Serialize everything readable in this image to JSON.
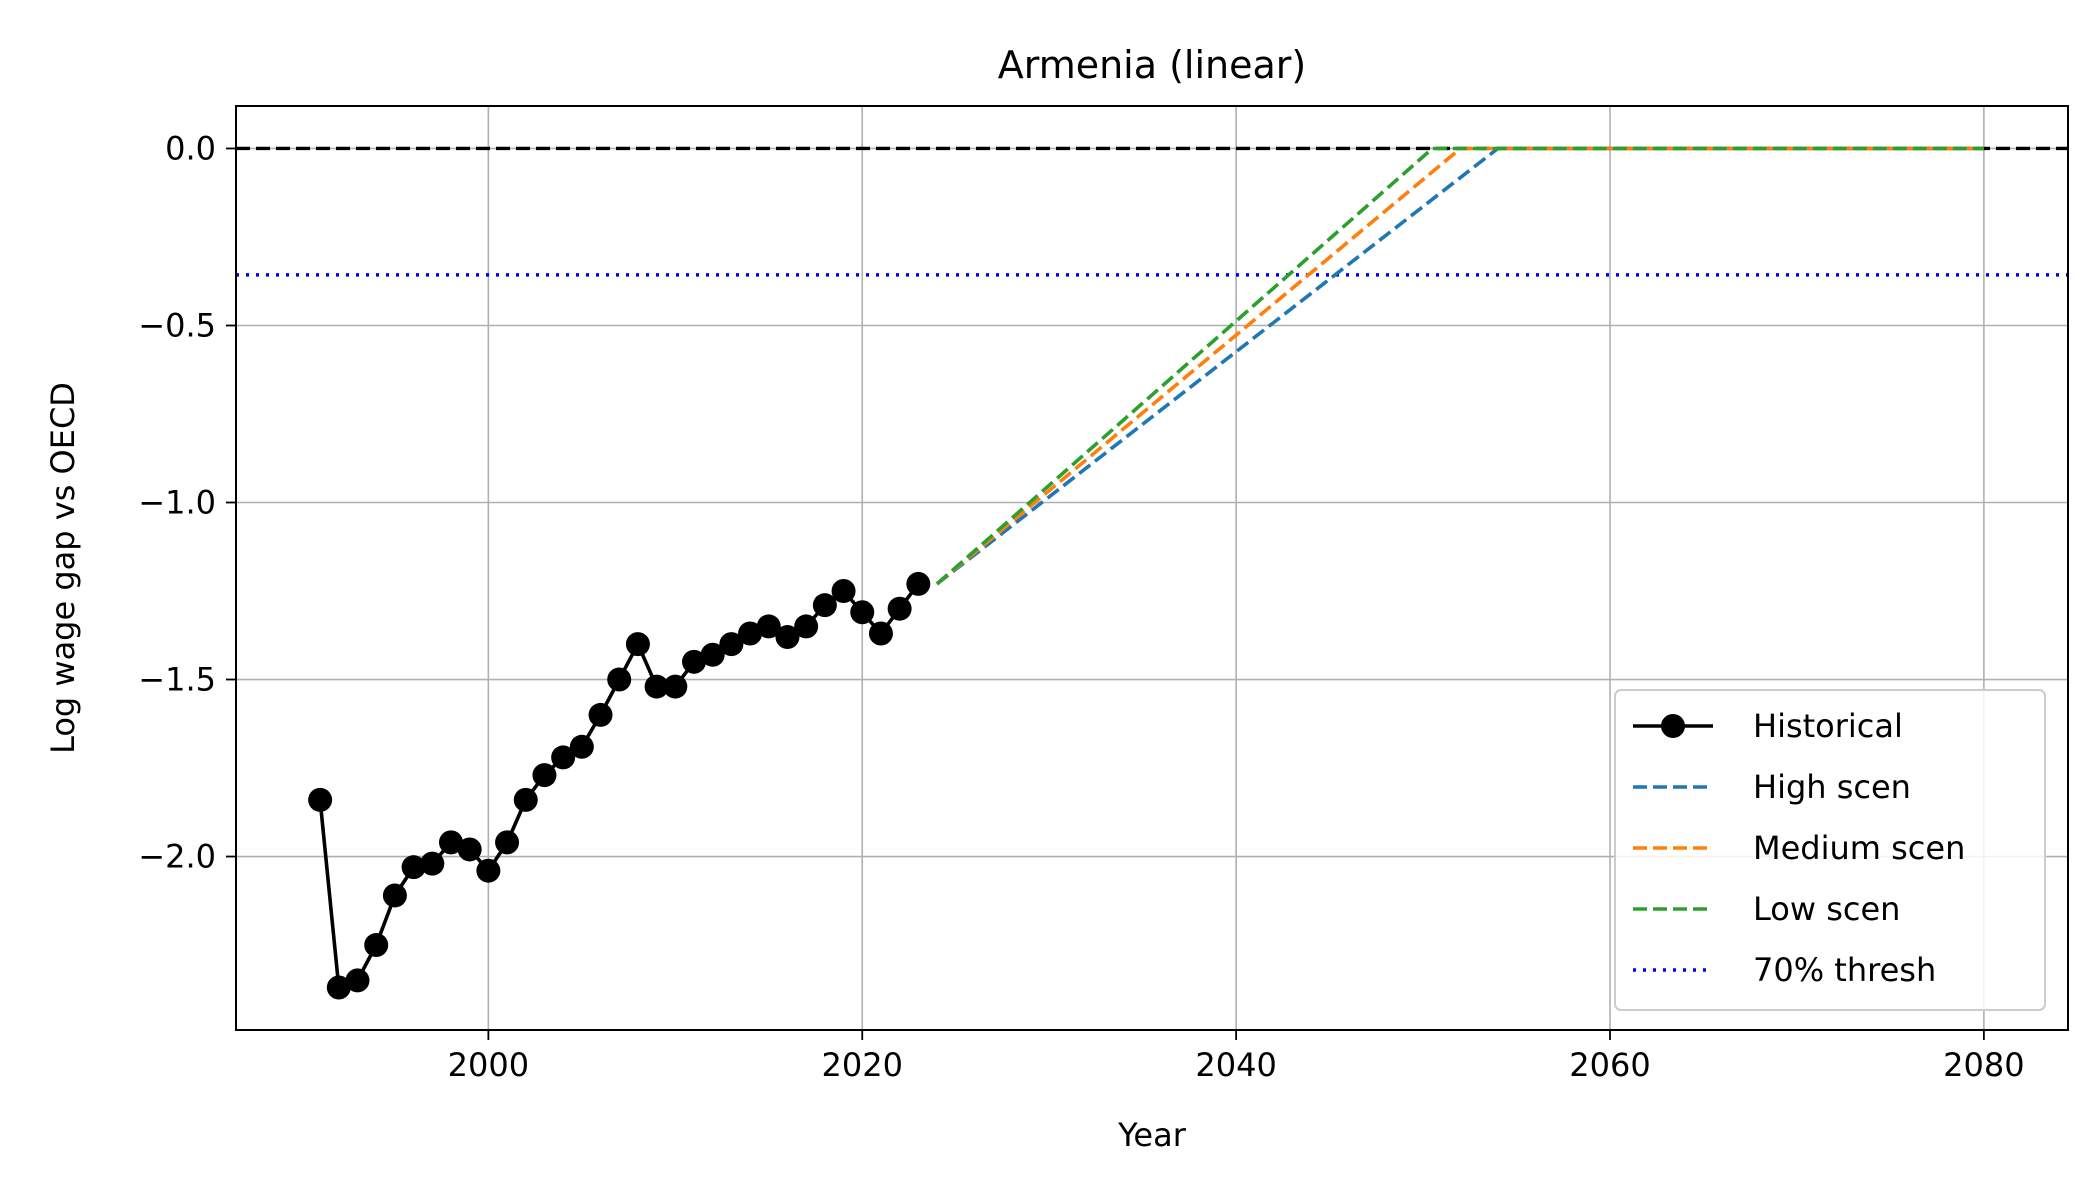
{
  "chart_data": {
    "type": "line",
    "title": "Armenia (linear)",
    "xlabel": "Year",
    "ylabel": "Log wage gap vs OECD",
    "xlim": [
      1986.5,
      2084.5
    ],
    "ylim": [
      -2.49,
      0.12
    ],
    "xticks": [
      2000,
      2020,
      2040,
      2060,
      2080
    ],
    "yticks": [
      0.0,
      -0.5,
      -1.0,
      -1.5,
      -2.0
    ],
    "ytick_labels": [
      "0.0",
      "−0.5",
      "−1.0",
      "−1.5",
      "−2.0"
    ],
    "grid": true,
    "legend_position": "lower-right",
    "reference_lines": [
      {
        "y": 0.0,
        "color": "#000000",
        "style": "dashed"
      },
      {
        "y": -0.357,
        "color": "#0000ff",
        "style": "dotted",
        "name": "70% thresh"
      }
    ],
    "series": [
      {
        "name": "Historical",
        "color": "#000000",
        "style": "solid",
        "marker": "circle",
        "x": [
          1991,
          1992,
          1993,
          1994,
          1995,
          1996,
          1997,
          1998,
          1999,
          2000,
          2001,
          2002,
          2003,
          2004,
          2005,
          2006,
          2007,
          2008,
          2009,
          2010,
          2011,
          2012,
          2013,
          2014,
          2015,
          2016,
          2017,
          2018,
          2019,
          2020,
          2021,
          2022,
          2023
        ],
        "y": [
          -1.84,
          -2.37,
          -2.35,
          -2.25,
          -2.11,
          -2.03,
          -2.02,
          -1.96,
          -1.98,
          -2.04,
          -1.96,
          -1.84,
          -1.77,
          -1.72,
          -1.69,
          -1.6,
          -1.5,
          -1.4,
          -1.52,
          -1.52,
          -1.45,
          -1.43,
          -1.4,
          -1.37,
          -1.35,
          -1.38,
          -1.35,
          -1.29,
          -1.25,
          -1.31,
          -1.37,
          -1.3,
          -1.23
        ]
      },
      {
        "name": "High scen",
        "color": "#1f77b4",
        "style": "dashed",
        "x": [
          2024,
          2054,
          2080
        ],
        "y": [
          -1.23,
          0.0,
          0.0
        ]
      },
      {
        "name": "Medium scen",
        "color": "#ff7f0e",
        "style": "dashed",
        "x": [
          2024,
          2052,
          2080
        ],
        "y": [
          -1.23,
          0.0,
          0.0
        ]
      },
      {
        "name": "Low scen",
        "color": "#2ca02c",
        "style": "dashed",
        "x": [
          2024,
          2050.5,
          2080
        ],
        "y": [
          -1.23,
          0.0,
          0.0
        ]
      }
    ],
    "legend": [
      {
        "name": "Historical",
        "color": "#000000",
        "style": "solid",
        "marker": "circle"
      },
      {
        "name": "High scen",
        "color": "#1f77b4",
        "style": "dashed"
      },
      {
        "name": "Medium scen",
        "color": "#ff7f0e",
        "style": "dashed"
      },
      {
        "name": "Low scen",
        "color": "#2ca02c",
        "style": "dashed"
      },
      {
        "name": "70% thresh",
        "color": "#0000ff",
        "style": "dotted"
      }
    ]
  }
}
